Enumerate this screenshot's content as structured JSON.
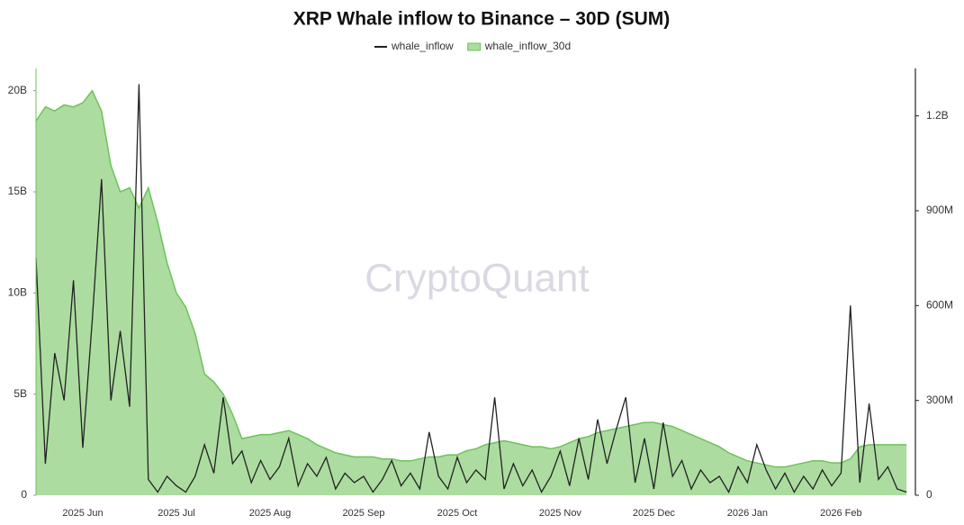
{
  "chart_data": {
    "type": "area-line",
    "title": "XRP Whale inflow to Binance – 30D (SUM)",
    "watermark": "CryptoQuant",
    "categories": [
      null,
      null,
      null,
      null,
      null,
      "2025 Jun",
      null,
      null,
      null,
      null,
      null,
      null,
      null,
      null,
      null,
      "2025 Jul",
      null,
      null,
      null,
      null,
      null,
      null,
      null,
      null,
      null,
      "2025 Aug",
      null,
      null,
      null,
      null,
      null,
      null,
      null,
      null,
      null,
      "2025 Sep",
      null,
      null,
      null,
      null,
      null,
      null,
      null,
      null,
      null,
      "2025 Oct",
      null,
      null,
      null,
      null,
      null,
      null,
      null,
      null,
      null,
      null,
      "2025 Nov",
      null,
      null,
      null,
      null,
      null,
      null,
      null,
      null,
      null,
      "2025 Dec",
      null,
      null,
      null,
      null,
      null,
      null,
      null,
      null,
      null,
      "2026 Jan",
      null,
      null,
      null,
      null,
      null,
      null,
      null,
      null,
      null,
      "2026 Feb",
      null,
      null,
      null,
      null,
      null,
      null,
      null
    ],
    "series": [
      {
        "name": "whale_inflow",
        "color": "#222222",
        "axis": "y2",
        "values": [
          750,
          100,
          450,
          300,
          680,
          150,
          550,
          1000,
          300,
          520,
          280,
          1300,
          50,
          10,
          60,
          30,
          10,
          60,
          160,
          70,
          310,
          100,
          140,
          40,
          110,
          50,
          90,
          180,
          30,
          100,
          60,
          120,
          20,
          70,
          40,
          60,
          10,
          50,
          110,
          30,
          70,
          20,
          200,
          60,
          20,
          120,
          40,
          80,
          50,
          310,
          20,
          100,
          30,
          80,
          10,
          60,
          140,
          30,
          180,
          50,
          240,
          100,
          210,
          310,
          40,
          180,
          20,
          230,
          60,
          110,
          20,
          80,
          40,
          60,
          10,
          90,
          40,
          160,
          80,
          20,
          70,
          10,
          60,
          20,
          80,
          30,
          70,
          600,
          40,
          290,
          50,
          90,
          20,
          10
        ]
      },
      {
        "name": "whale_inflow_30d",
        "color": "#6cc35a",
        "axis": "y",
        "values": [
          18.5,
          19.2,
          19.0,
          19.3,
          19.2,
          19.4,
          20.0,
          19.0,
          16.3,
          15.0,
          15.2,
          14.2,
          15.2,
          13.5,
          11.5,
          10.0,
          9.3,
          8.0,
          6.0,
          5.6,
          5.0,
          4.0,
          2.8,
          2.9,
          3.0,
          3.0,
          3.1,
          3.2,
          3.0,
          2.8,
          2.5,
          2.3,
          2.1,
          2.0,
          1.9,
          1.9,
          1.9,
          1.8,
          1.8,
          1.7,
          1.7,
          1.8,
          1.9,
          1.9,
          2.0,
          2.0,
          2.2,
          2.3,
          2.5,
          2.6,
          2.7,
          2.6,
          2.5,
          2.4,
          2.4,
          2.3,
          2.4,
          2.6,
          2.8,
          2.9,
          3.1,
          3.2,
          3.3,
          3.4,
          3.5,
          3.6,
          3.6,
          3.5,
          3.4,
          3.2,
          3.0,
          2.8,
          2.6,
          2.4,
          2.1,
          1.9,
          1.7,
          1.6,
          1.5,
          1.4,
          1.4,
          1.5,
          1.6,
          1.7,
          1.7,
          1.6,
          1.6,
          1.8,
          2.4,
          2.5,
          2.5,
          2.5,
          2.5,
          2.5
        ]
      }
    ],
    "ylim": [
      0,
      21.1
    ],
    "yticks": [
      0,
      {
        "value": 5,
        "label": "5B"
      },
      {
        "value": 10,
        "label": "10B"
      },
      {
        "value": 15,
        "label": "15B"
      },
      {
        "value": 20,
        "label": "20B"
      }
    ],
    "y2lim": [
      0,
      1350
    ],
    "y2ticks": [
      0,
      {
        "value": 300,
        "label": "300M"
      },
      {
        "value": 600,
        "label": "600M"
      },
      {
        "value": 900,
        "label": "900M"
      },
      {
        "value": 1200,
        "label": "1.2B"
      }
    ],
    "grid": false,
    "legend": "top"
  }
}
